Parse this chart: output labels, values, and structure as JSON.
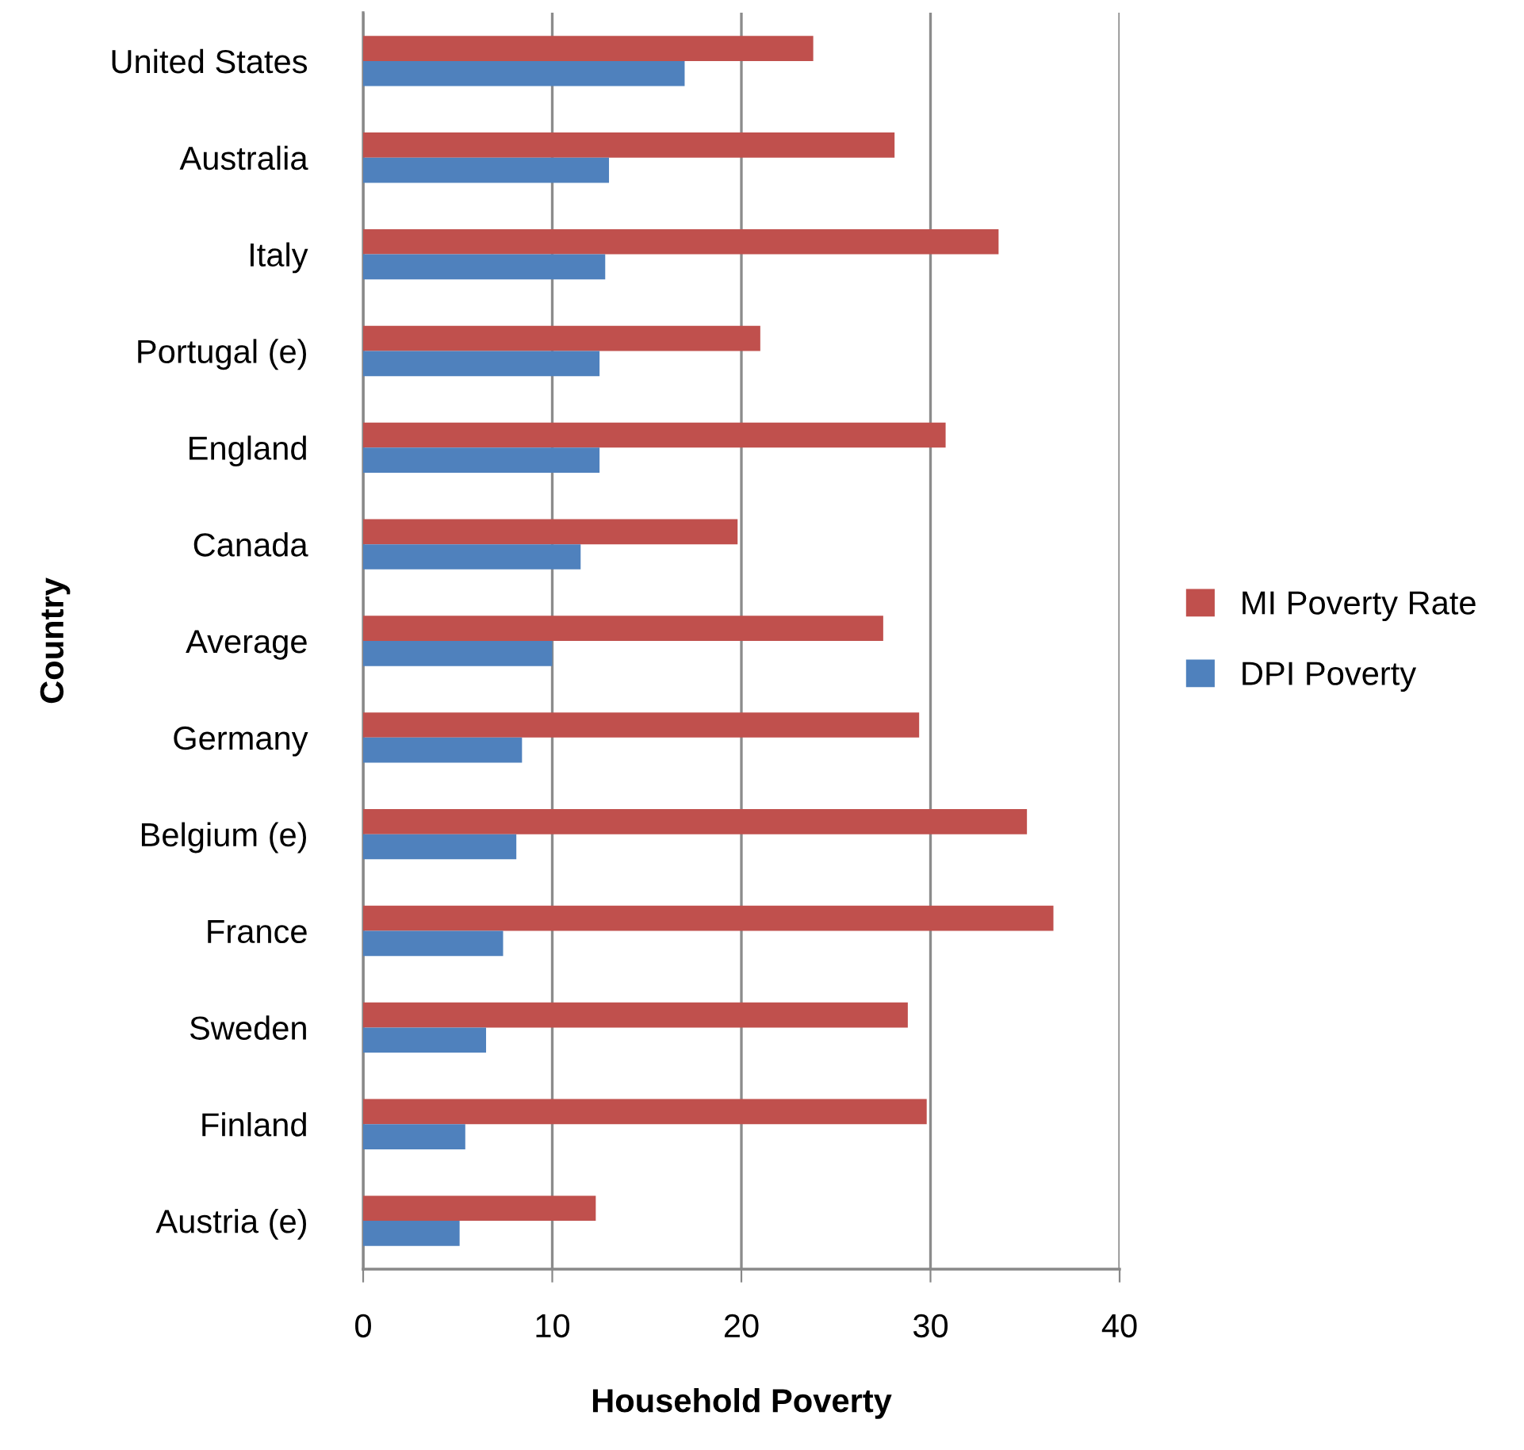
{
  "chart_data": {
    "type": "bar",
    "orientation": "horizontal",
    "xlabel": "Household Poverty",
    "ylabel": "Country",
    "categories": [
      "United States",
      "Australia",
      "Italy",
      "Portugal (e)",
      "England",
      "Canada",
      "Average",
      "Germany",
      "Belgium (e)",
      "France",
      "Sweden",
      "Finland",
      "Austria (e)"
    ],
    "series": [
      {
        "name": "MI Poverty Rate",
        "color": "#c0504d",
        "values": [
          23.8,
          28.1,
          33.6,
          21.0,
          30.8,
          19.8,
          27.5,
          29.4,
          35.1,
          36.5,
          28.8,
          29.8,
          12.3
        ]
      },
      {
        "name": "DPI Poverty",
        "color": "#4f81bd",
        "values": [
          17.0,
          13.0,
          12.8,
          12.5,
          12.5,
          11.5,
          10.0,
          8.4,
          8.1,
          7.4,
          6.5,
          5.4,
          5.1
        ]
      }
    ],
    "xlim": [
      0,
      40
    ],
    "xticks": [
      0,
      10,
      20,
      30,
      40
    ],
    "grid": "x",
    "legend": "right"
  }
}
